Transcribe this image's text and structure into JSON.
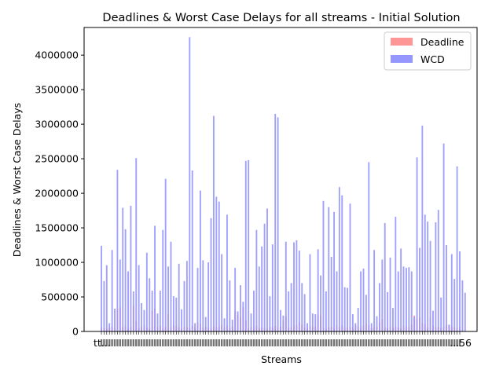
{
  "chart_data": {
    "type": "bar",
    "title": "Deadlines & Worst Case Delays for all streams - Initial Solution",
    "xlabel": "Streams",
    "ylabel": "Deadlines & Worst Case Delays",
    "ylim": [
      0,
      4400000
    ],
    "yticks": [
      0,
      500000,
      1000000,
      1500000,
      2000000,
      2500000,
      3000000,
      3500000,
      4000000
    ],
    "grid": false,
    "legend_position": "top-right",
    "x_tick_labels_first": "tt...",
    "x_tick_labels_last": "...56",
    "colors": {
      "deadline": "#ff9696",
      "wcd": "#9696ff"
    },
    "series": [
      {
        "name": "Deadline",
        "values": [
          60000,
          50000,
          40000,
          60000,
          70000,
          40000,
          330000,
          350000,
          60000,
          80000,
          50000,
          70000,
          380000,
          150000,
          50000,
          70000,
          90000,
          60000,
          40000,
          300000,
          330000,
          60000,
          80000,
          40000,
          70000,
          250000,
          60000,
          90000,
          80000,
          60000,
          40000,
          70000,
          60000,
          50000,
          80000,
          60000,
          130000,
          110000,
          50000,
          70000,
          60000,
          50000,
          80000,
          60000,
          70000,
          90000,
          60000,
          80000,
          50000,
          70000,
          300000,
          240000,
          200000,
          350000,
          160000,
          40000,
          70000,
          60000,
          80000,
          50000,
          60000,
          50000,
          40000,
          70000,
          60000,
          80000,
          50000,
          70000,
          150000,
          220000,
          50000,
          60000,
          80000,
          90000,
          130000,
          100000,
          60000,
          50000,
          80000,
          60000,
          70000,
          240000,
          230000,
          50000,
          40000,
          60000,
          70000,
          50000,
          80000,
          60000,
          90000,
          60000,
          50000,
          70000,
          60000,
          90000,
          70000,
          60000,
          80000,
          110000,
          90000,
          50000,
          60000,
          70000,
          130000,
          180000,
          60000,
          50000,
          80000,
          60000,
          70000,
          60000,
          50000,
          80000,
          70000,
          60000,
          100000,
          230000,
          180000,
          200000,
          120000,
          100000,
          60000,
          200000,
          80000,
          60000,
          70000,
          50000,
          60000,
          90000,
          80000,
          70000,
          60000,
          50000,
          70000
        ],
        "color": "#ff9696"
      },
      {
        "name": "WCD",
        "values": [
          1240000,
          730000,
          960000,
          120000,
          1180000,
          330000,
          2340000,
          1040000,
          1790000,
          1480000,
          870000,
          1820000,
          580000,
          2510000,
          960000,
          410000,
          310000,
          1140000,
          770000,
          590000,
          1530000,
          260000,
          590000,
          1470000,
          2210000,
          940000,
          1300000,
          510000,
          490000,
          980000,
          320000,
          730000,
          1020000,
          4260000,
          2330000,
          120000,
          920000,
          2040000,
          1030000,
          210000,
          1000000,
          1640000,
          3120000,
          1950000,
          1880000,
          1120000,
          190000,
          1690000,
          740000,
          170000,
          920000,
          290000,
          670000,
          430000,
          2470000,
          2480000,
          260000,
          590000,
          1470000,
          940000,
          1230000,
          1560000,
          1780000,
          510000,
          1260000,
          3150000,
          3100000,
          310000,
          230000,
          1300000,
          580000,
          700000,
          1290000,
          1320000,
          1170000,
          700000,
          540000,
          120000,
          1120000,
          260000,
          250000,
          1190000,
          810000,
          1890000,
          580000,
          1800000,
          1080000,
          1730000,
          870000,
          2090000,
          1970000,
          640000,
          630000,
          1850000,
          250000,
          120000,
          340000,
          870000,
          910000,
          530000,
          2450000,
          120000,
          1180000,
          220000,
          700000,
          1040000,
          1570000,
          570000,
          1070000,
          340000,
          1660000,
          870000,
          1200000,
          940000,
          920000,
          930000,
          870000,
          210000,
          2520000,
          1210000,
          2980000,
          1690000,
          1590000,
          1310000,
          300000,
          1580000,
          1760000,
          490000,
          2720000,
          1250000,
          100000,
          1120000,
          760000,
          2390000,
          1160000,
          740000,
          560000
        ],
        "color": "#9696ff"
      }
    ]
  }
}
